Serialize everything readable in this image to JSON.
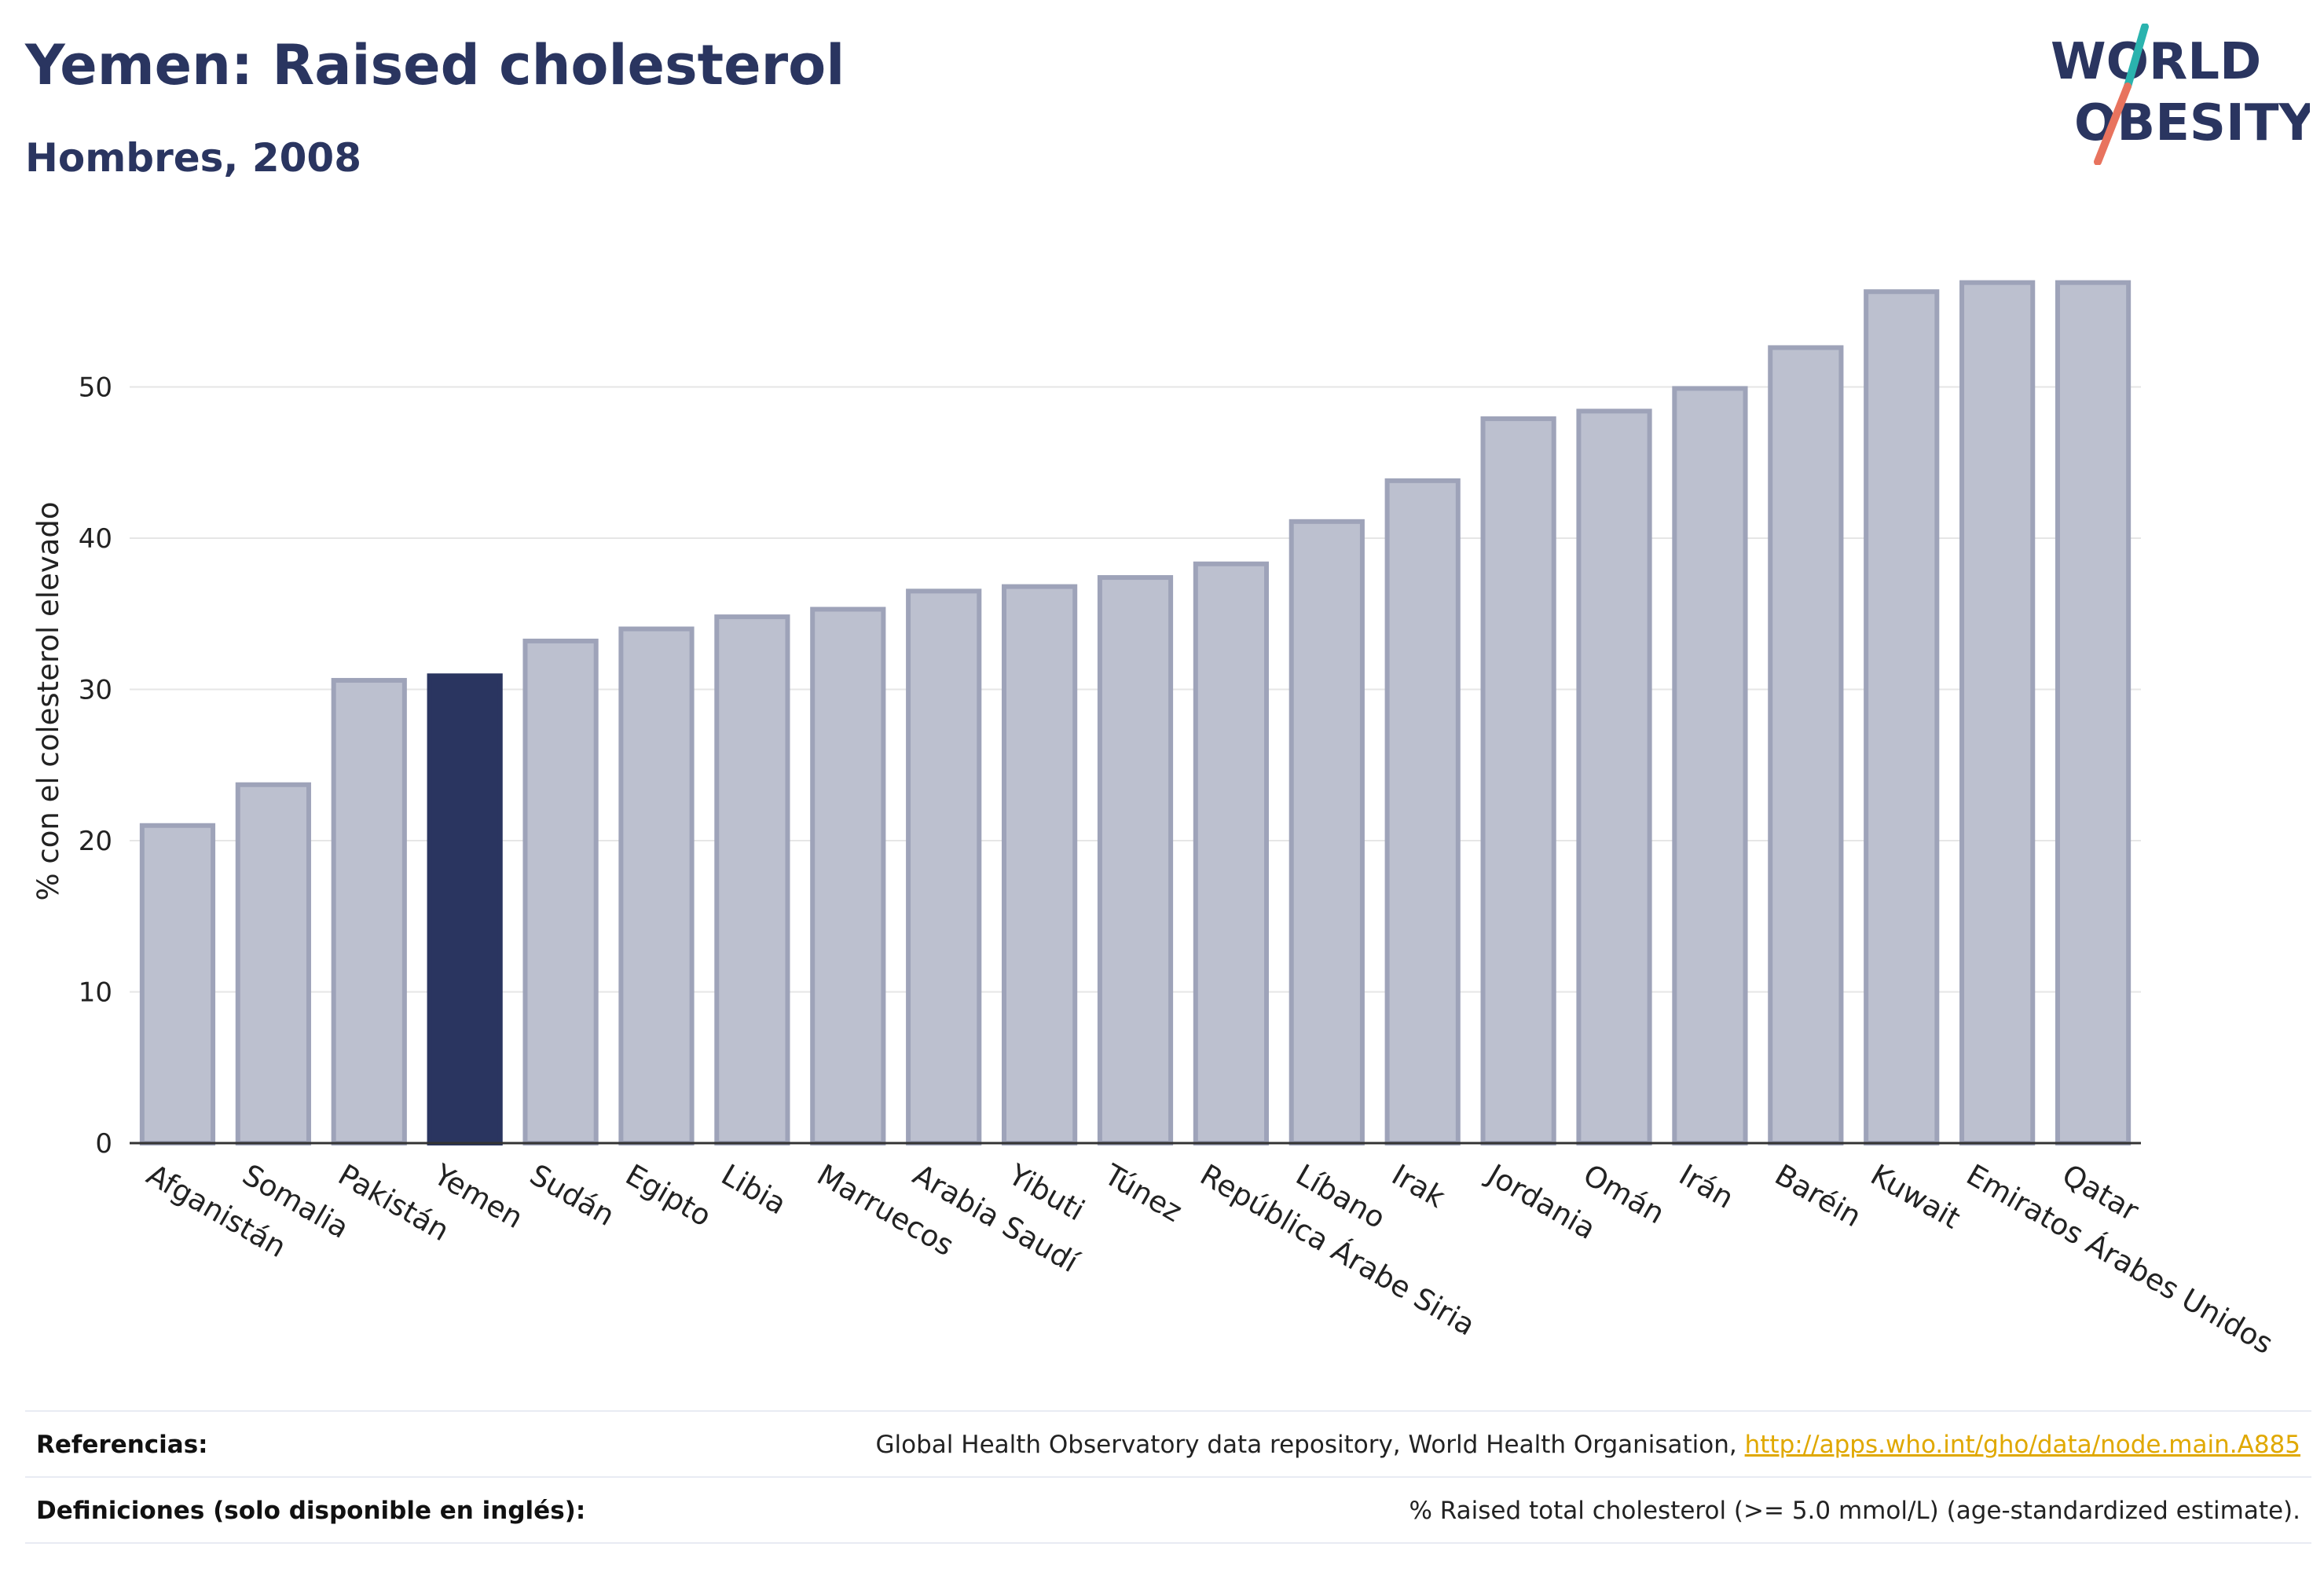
{
  "header": {
    "title": "Yemen: Raised cholesterol",
    "subtitle": "Hombres, 2008",
    "logo_line1": "WORLD",
    "logo_line2": "OBESITY"
  },
  "colors": {
    "title": "#2a3560",
    "bar_default_fill": "#bcc0cf",
    "bar_default_stroke": "#9ea3b9",
    "bar_highlight": "#2a3560",
    "logo_teal": "#2ab3ae",
    "logo_coral": "#e8735e",
    "link": "#e0a800"
  },
  "chart_data": {
    "type": "bar",
    "title": "Yemen: Raised cholesterol",
    "subtitle": "Hombres, 2008",
    "ylabel": "% con el colesterol elevado",
    "xlabel": "",
    "ylim": [
      0,
      60
    ],
    "yticks": [
      0,
      10,
      20,
      30,
      40,
      50
    ],
    "grid": true,
    "highlight": "Yemen",
    "categories": [
      "Afganistán",
      "Somalia",
      "Pakistán",
      "Yemen",
      "Sudán",
      "Egipto",
      "Libia",
      "Marruecos",
      "Arabia Saudí",
      "Yibuti",
      "Túnez",
      "República Árabe Siria",
      "Líbano",
      "Irak",
      "Jordania",
      "Omán",
      "Irán",
      "Baréin",
      "Kuwait",
      "Emiratos Árabes Unidos",
      "Qatar"
    ],
    "values": [
      21.0,
      23.7,
      30.6,
      30.9,
      33.2,
      34.0,
      34.8,
      35.3,
      36.5,
      36.8,
      37.4,
      38.3,
      41.1,
      43.8,
      47.9,
      48.4,
      49.9,
      52.6,
      56.3,
      56.9,
      56.9
    ]
  },
  "footer": {
    "references_label": "Referencias:",
    "references_text": "Global Health Observatory data repository, World Health Organisation, ",
    "references_link": "http://apps.who.int/gho/data/node.main.A885",
    "definitions_label": "Definiciones (solo disponible en inglés):",
    "definitions_text": "% Raised total cholesterol (>= 5.0 mmol/L) (age-standardized estimate)."
  }
}
